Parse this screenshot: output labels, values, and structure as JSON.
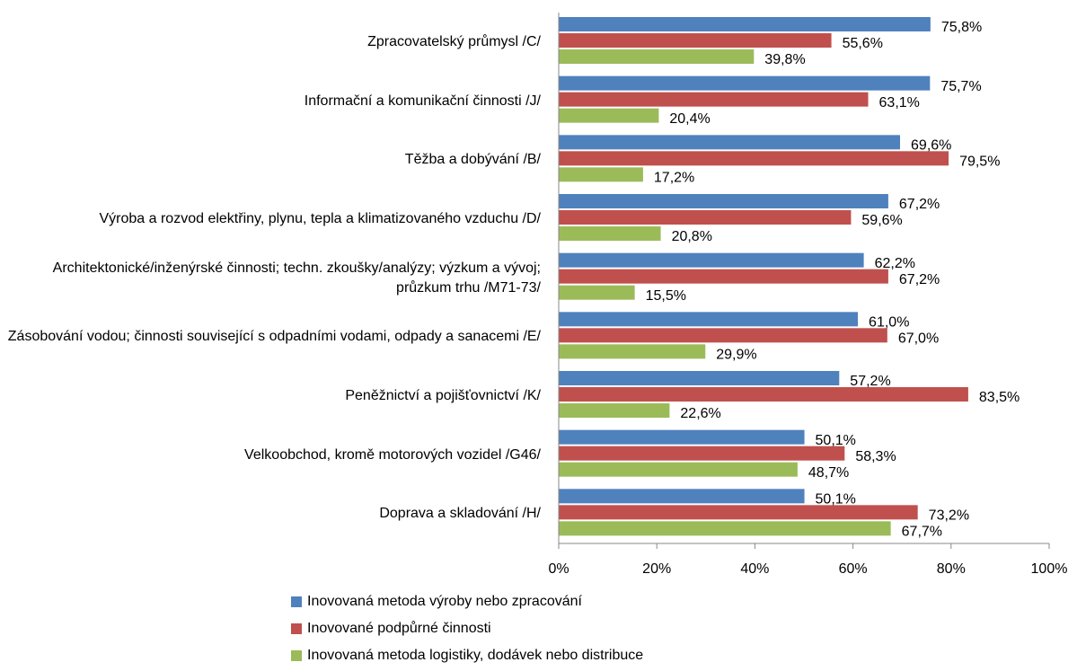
{
  "chart_data": {
    "type": "hbar",
    "categories": [
      "Zpracovatelský průmysl /C/",
      "Informační a komunikační činnosti /J/",
      "Těžba a dobývání /B/",
      "Výroba a rozvod elektřiny, plynu, tepla a klimatizovaného vzduchu /D/",
      "Architektonické/inženýrské činnosti; techn. zkoušky/analýzy; výzkum a vývoj; průzkum trhu /M71-73/",
      "Zásobování vodou; činnosti související s odpadními vodami, odpady a sanacemi /E/",
      "Peněžnictví a pojišťovnictví /K/",
      "Velkoobchod, kromě motorových vozidel /G46/",
      "Doprava a skladování /H/"
    ],
    "series": [
      {
        "name": "Inovovaná metoda výroby nebo zpracování",
        "color": "#4f81bd",
        "values": [
          75.8,
          75.7,
          69.6,
          67.2,
          62.2,
          61.0,
          57.2,
          50.1,
          50.1
        ],
        "value_labels": [
          "75,8%",
          "75,7%",
          "69,6%",
          "67,2%",
          "62,2%",
          "61,0%",
          "57,2%",
          "50,1%",
          "50,1%"
        ]
      },
      {
        "name": "Inovované podpůrné činnosti",
        "color": "#c0504d",
        "values": [
          55.6,
          63.1,
          79.5,
          59.6,
          67.2,
          67.0,
          83.5,
          58.3,
          73.2
        ],
        "value_labels": [
          "55,6%",
          "63,1%",
          "79,5%",
          "59,6%",
          "67,2%",
          "67,0%",
          "83,5%",
          "58,3%",
          "73,2%"
        ]
      },
      {
        "name": "Inovovaná metoda logistiky, dodávek nebo distribuce",
        "color": "#9bbb59",
        "values": [
          39.8,
          20.4,
          17.2,
          20.8,
          15.5,
          29.9,
          22.6,
          48.7,
          67.7
        ],
        "value_labels": [
          "39,8%",
          "20,4%",
          "17,2%",
          "20,8%",
          "15,5%",
          "29,9%",
          "22,6%",
          "48,7%",
          "67,7%"
        ]
      }
    ],
    "xlim": [
      0,
      100
    ],
    "xticks": [
      {
        "value": 0,
        "label": "0%"
      },
      {
        "value": 20,
        "label": "20%"
      },
      {
        "value": 40,
        "label": "40%"
      },
      {
        "value": 60,
        "label": "60%"
      },
      {
        "value": 80,
        "label": "80%"
      },
      {
        "value": 100,
        "label": "100%"
      }
    ],
    "legend": "bottom"
  }
}
